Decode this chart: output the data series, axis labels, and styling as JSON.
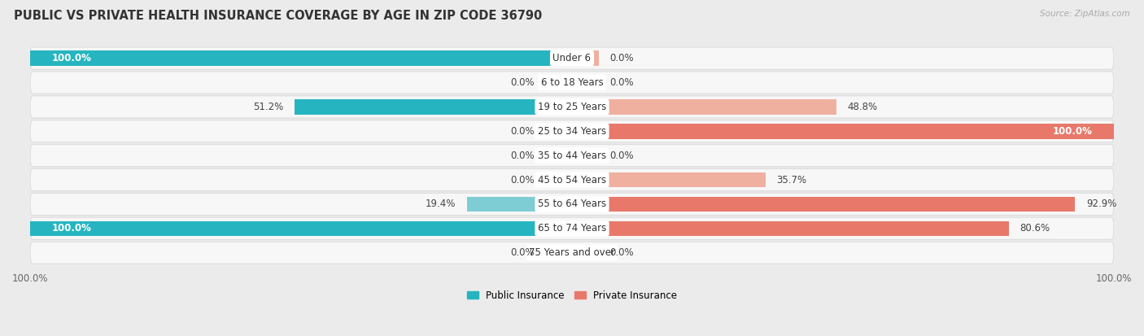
{
  "title": "PUBLIC VS PRIVATE HEALTH INSURANCE COVERAGE BY AGE IN ZIP CODE 36790",
  "source": "Source: ZipAtlas.com",
  "categories": [
    "Under 6",
    "6 to 18 Years",
    "19 to 25 Years",
    "25 to 34 Years",
    "35 to 44 Years",
    "45 to 54 Years",
    "55 to 64 Years",
    "65 to 74 Years",
    "75 Years and over"
  ],
  "public_values": [
    100.0,
    0.0,
    51.2,
    0.0,
    0.0,
    0.0,
    19.4,
    100.0,
    0.0
  ],
  "private_values": [
    0.0,
    0.0,
    48.8,
    100.0,
    0.0,
    35.7,
    92.9,
    80.6,
    0.0
  ],
  "public_color": "#26b5c0",
  "private_color": "#e8796a",
  "public_color_light": "#7fcdd4",
  "private_color_light": "#f0b0a0",
  "bg_color": "#ebebeb",
  "row_bg_color": "#f7f7f7",
  "row_border_color": "#dddddd",
  "title_color": "#333333",
  "source_color": "#aaaaaa",
  "label_fontsize": 8.5,
  "title_fontsize": 10.5,
  "bar_height": 0.62,
  "min_stub": 5.0,
  "legend_public": "Public Insurance",
  "legend_private": "Private Insurance"
}
